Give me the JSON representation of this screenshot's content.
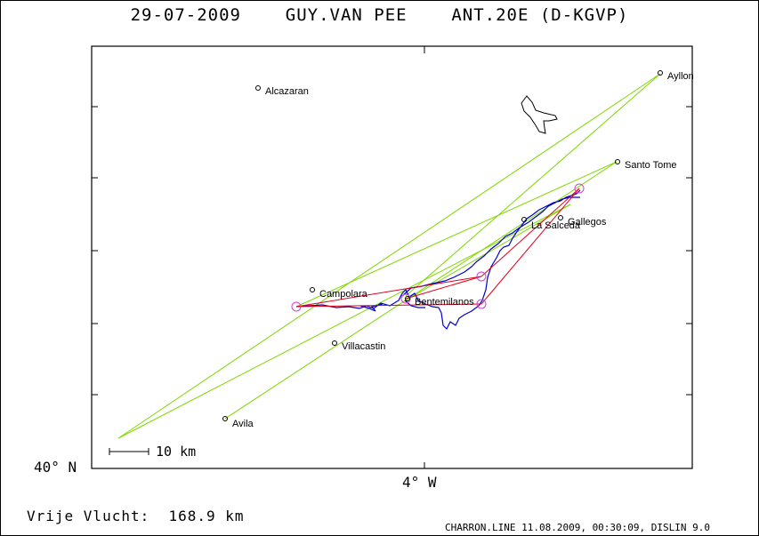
{
  "header": {
    "date": "29-07-2009",
    "pilot": "GUY.VAN PEE",
    "glider": "ANT.20E (D-KGVP)"
  },
  "axes": {
    "lat_label": "40° N",
    "lon_label": "4° W"
  },
  "scale_label": "10 km",
  "distance": {
    "label": "Vrije Vlucht:",
    "value": "168.9 km"
  },
  "footer": "CHARRON.LINE 11.08.2009, 00:30:09, DISLIN 9.0",
  "places": [
    {
      "name": "Alcazaran"
    },
    {
      "name": "Ayllon"
    },
    {
      "name": "Santo Tome"
    },
    {
      "name": "La Salceda"
    },
    {
      "name": "Gallegos"
    },
    {
      "name": "Campolara"
    },
    {
      "name": "Bentemilanos"
    },
    {
      "name": "Villacastin"
    },
    {
      "name": "Avila"
    }
  ],
  "colors": {
    "track": "#0000cc",
    "triangle": "#e0001a",
    "sectors": "#7fd800",
    "turnpoint": "#d040d0"
  }
}
